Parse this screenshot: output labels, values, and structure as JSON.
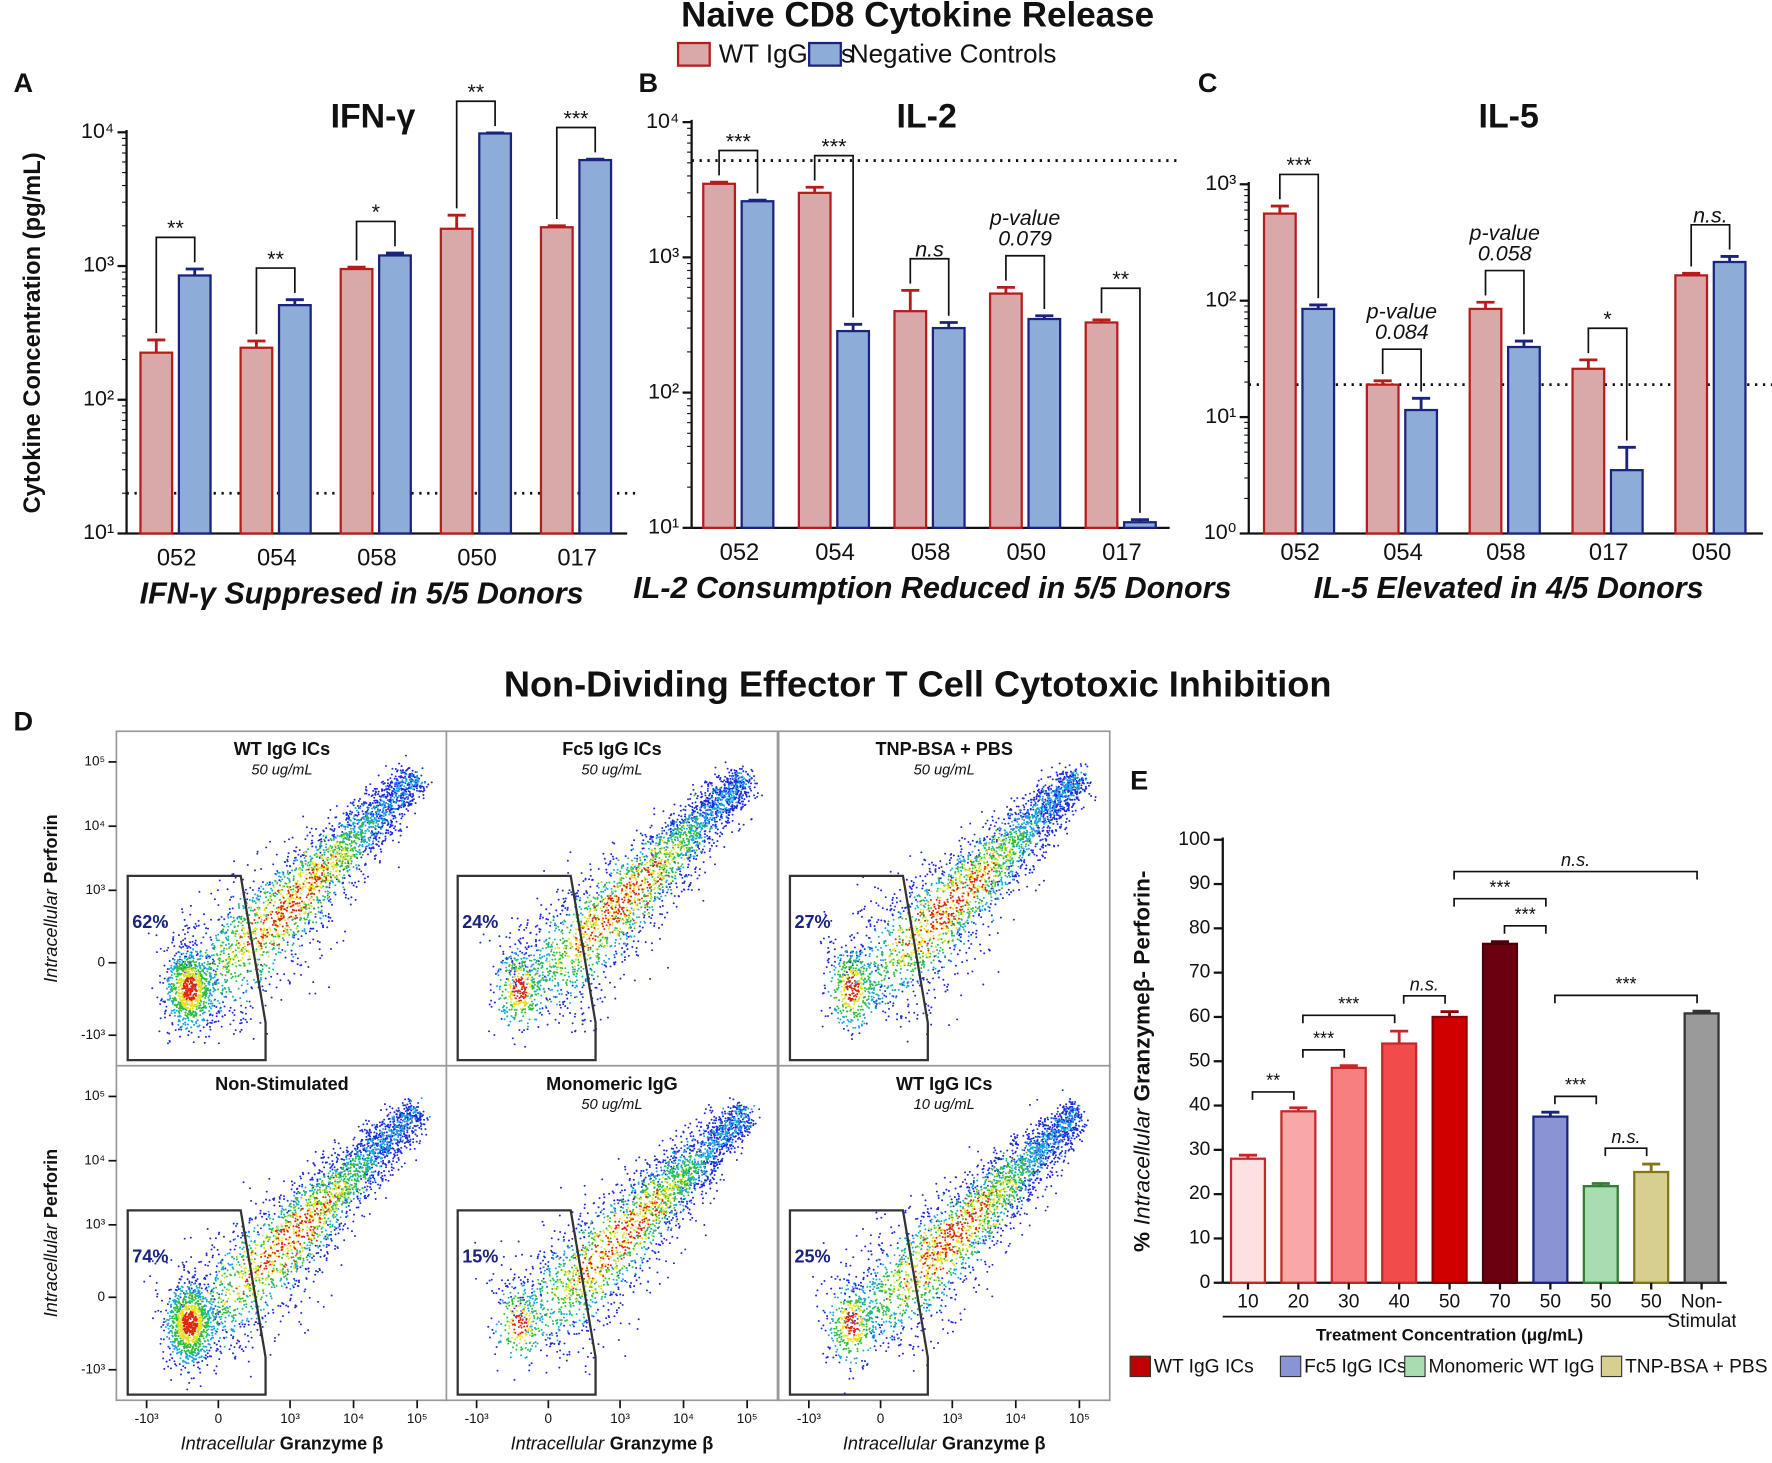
{
  "figure_title": "Naive CD8 Cytokine Release",
  "chart_data": [
    {
      "type": "bar",
      "label": "A",
      "title": "IFN-γ",
      "ylabel": "Cytokine Concentration (pg/mL)",
      "xlabel": "IFN-γ Suppresed in 5/5 Donors",
      "categories": [
        "052",
        "054",
        "058",
        "050",
        "017"
      ],
      "series": [
        {
          "name": "WT IgG ICs",
          "color": "#d9a9a9",
          "edgecolor": "#b71c1c",
          "values": [
            225,
            245,
            950,
            1900,
            1950
          ],
          "errors": [
            55,
            30,
            30,
            500,
            50
          ]
        },
        {
          "name": "Negative Controls",
          "color": "#8eacd8",
          "edgecolor": "#1a237e",
          "values": [
            850,
            510,
            1200,
            9800,
            6200
          ],
          "errors": [
            100,
            50,
            50,
            100,
            100
          ]
        }
      ],
      "significance": [
        "**",
        "**",
        "*",
        "**",
        "***"
      ],
      "threshold": 20,
      "log": true,
      "ylim": [
        10,
        10000
      ],
      "yticks": [
        {
          "value": 10,
          "label": "10¹"
        },
        {
          "value": 100,
          "label": "10²"
        },
        {
          "value": 1000,
          "label": "10³"
        },
        {
          "value": 10000,
          "label": "10⁴"
        }
      ]
    },
    {
      "type": "bar",
      "label": "B",
      "title": "IL-2",
      "xlabel": "IL-2 Consumption Reduced in 5/5 Donors",
      "categories": [
        "052",
        "054",
        "058",
        "050",
        "017"
      ],
      "series": [
        {
          "color": "#d9a9a9",
          "edgecolor": "#b71c1c",
          "values": [
            3500,
            3000,
            400,
            540,
            330
          ],
          "errors": [
            100,
            300,
            170,
            60,
            15
          ]
        },
        {
          "color": "#8eacd8",
          "edgecolor": "#1a237e",
          "values": [
            2600,
            285,
            300,
            350,
            11
          ],
          "errors": [
            50,
            35,
            30,
            20,
            0.5
          ]
        }
      ],
      "significance": [
        "***",
        "***",
        "n.s",
        [
          "p-value",
          "0.079"
        ],
        "**"
      ],
      "threshold": 5200,
      "log": true,
      "ylim": [
        10,
        10000
      ],
      "yticks": [
        {
          "value": 10,
          "label": "10¹"
        },
        {
          "value": 100,
          "label": "10²"
        },
        {
          "value": 1000,
          "label": "10³"
        },
        {
          "value": 10000,
          "label": "10⁴"
        }
      ]
    },
    {
      "type": "bar",
      "label": "C",
      "title": "IL-5",
      "xlabel": "IL-5 Elevated in 4/5 Donors",
      "categories": [
        "052",
        "054",
        "058",
        "017",
        "050"
      ],
      "series": [
        {
          "color": "#d9a9a9",
          "edgecolor": "#b71c1c",
          "values": [
            560,
            19,
            85,
            26,
            165
          ],
          "errors": [
            90,
            1.5,
            12,
            5,
            7
          ]
        },
        {
          "color": "#8eacd8",
          "edgecolor": "#1a237e",
          "values": [
            85,
            11.5,
            40,
            3.5,
            215
          ],
          "errors": [
            7,
            3,
            5,
            2,
            25
          ]
        }
      ],
      "significance": [
        "***",
        [
          "p-value",
          "0.084"
        ],
        [
          "p-value",
          "0.058"
        ],
        "*",
        "n.s."
      ],
      "threshold": 19,
      "log": true,
      "ylim": [
        1,
        1000
      ],
      "yticks": [
        {
          "value": 1,
          "label": "10⁰"
        },
        {
          "value": 10,
          "label": "10¹"
        },
        {
          "value": 100,
          "label": "10²"
        },
        {
          "value": 1000,
          "label": "10³"
        }
      ]
    },
    {
      "type": "flow",
      "label": "D",
      "title": "Non-Dividing Effector T Cell Cytotoxic Inhibition",
      "panels": [
        {
          "title": "WT IgG ICs",
          "subtitle": "50 ug/mL"
        },
        {
          "title": "Fc5 IgG ICs",
          "subtitle": "50 ug/mL"
        },
        {
          "title": "TNP-BSA + PBS",
          "subtitle": "50 ug/mL"
        },
        {
          "title": "Non-Stimulated"
        },
        {
          "title": "Monomeric IgG",
          "subtitle": "50 ug/mL"
        },
        {
          "title": "WT IgG ICs",
          "subtitle": "10 ug/mL"
        }
      ],
      "values": [
        62,
        24,
        27,
        74,
        15,
        25
      ],
      "value_labels": [
        "62%",
        "24%",
        "27%",
        "74%",
        "15%",
        "25%"
      ],
      "ylabel": {
        "italic": "Intracellular",
        "bold": "Perforin"
      },
      "xlabel": {
        "italic": "Intracellular",
        "bold": "Granzyme β"
      },
      "scale": "biexponential",
      "xlim": [
        -3000,
        300000
      ],
      "ylim": [
        -3000,
        300000
      ],
      "xticks": [
        {
          "value": -1000,
          "label": "-10³"
        },
        0,
        {
          "value": 1000,
          "label": "10³"
        },
        {
          "value": 10000,
          "label": "10⁴"
        },
        {
          "value": 100000,
          "label": "10⁵"
        }
      ],
      "yticks": [
        {
          "value": -1000,
          "label": "-10³"
        },
        0,
        {
          "value": 1000,
          "label": "10³"
        },
        {
          "value": 10000,
          "label": "10⁴"
        },
        {
          "value": 100000,
          "label": "10⁵"
        }
      ]
    },
    {
      "type": "bar",
      "label": "E",
      "ylabel": {
        "prefix": "%",
        "italic": "Intracellular",
        "bold": "Granzymeβ- Perforin-"
      },
      "xlabel": "Treatment Concentration (μg/mL)",
      "categories": [
        "10",
        "20",
        "30",
        "40",
        "50",
        "70",
        "50",
        "50",
        "50",
        "Non-\nStimulated"
      ],
      "values": [
        28,
        38.7,
        48.5,
        54,
        60,
        76.5,
        37.5,
        21.8,
        25,
        60.8
      ],
      "errors": [
        0.8,
        0.8,
        0.5,
        2.8,
        1.2,
        0.5,
        1,
        0.6,
        1.8,
        0.5
      ],
      "colors": [
        "#fde0e0",
        "#f9a8a8",
        "#f87f7f",
        "#f24b4b",
        "#d00000",
        "#6b0010",
        "#8a93d4",
        "#a8ddb0",
        "#d6cf8f",
        "#9a9a9a"
      ],
      "edgecolors": [
        "#c62828",
        "#c62828",
        "#c62828",
        "#c62828",
        "#8b0000",
        "#4a000a",
        "#1a237e",
        "#2e7d32",
        "#827717",
        "#333333"
      ],
      "significance": [
        {
          "from": 0,
          "to": 1,
          "label": "**"
        },
        {
          "from": 1,
          "to": 2,
          "label": "***"
        },
        {
          "from": 1,
          "to": 3,
          "label": "***"
        },
        {
          "from": 3,
          "to": 4,
          "label": "n.s."
        },
        {
          "from": 5,
          "to": 6,
          "label": "***"
        },
        {
          "from": 4,
          "to": 6,
          "label": "***"
        },
        {
          "from": 6,
          "to": 7,
          "label": "***"
        },
        {
          "from": 7,
          "to": 8,
          "label": "n.s."
        },
        {
          "from": 6,
          "to": 9,
          "label": "***"
        },
        {
          "from": 4,
          "to": 9,
          "label": "n.s."
        }
      ],
      "legend": [
        {
          "name": "WT IgG ICs",
          "color": "#c00000"
        },
        {
          "name": "Fc5 IgG ICs",
          "color": "#8a93d4"
        },
        {
          "name": "Monomeric WT IgG",
          "color": "#a8ddb0"
        },
        {
          "name": "TNP-BSA + PBS",
          "color": "#d6cf8f"
        }
      ],
      "ylim": [
        0,
        100
      ],
      "yticks": [
        0,
        10,
        20,
        30,
        40,
        50,
        60,
        70,
        80,
        90,
        100
      ]
    }
  ]
}
